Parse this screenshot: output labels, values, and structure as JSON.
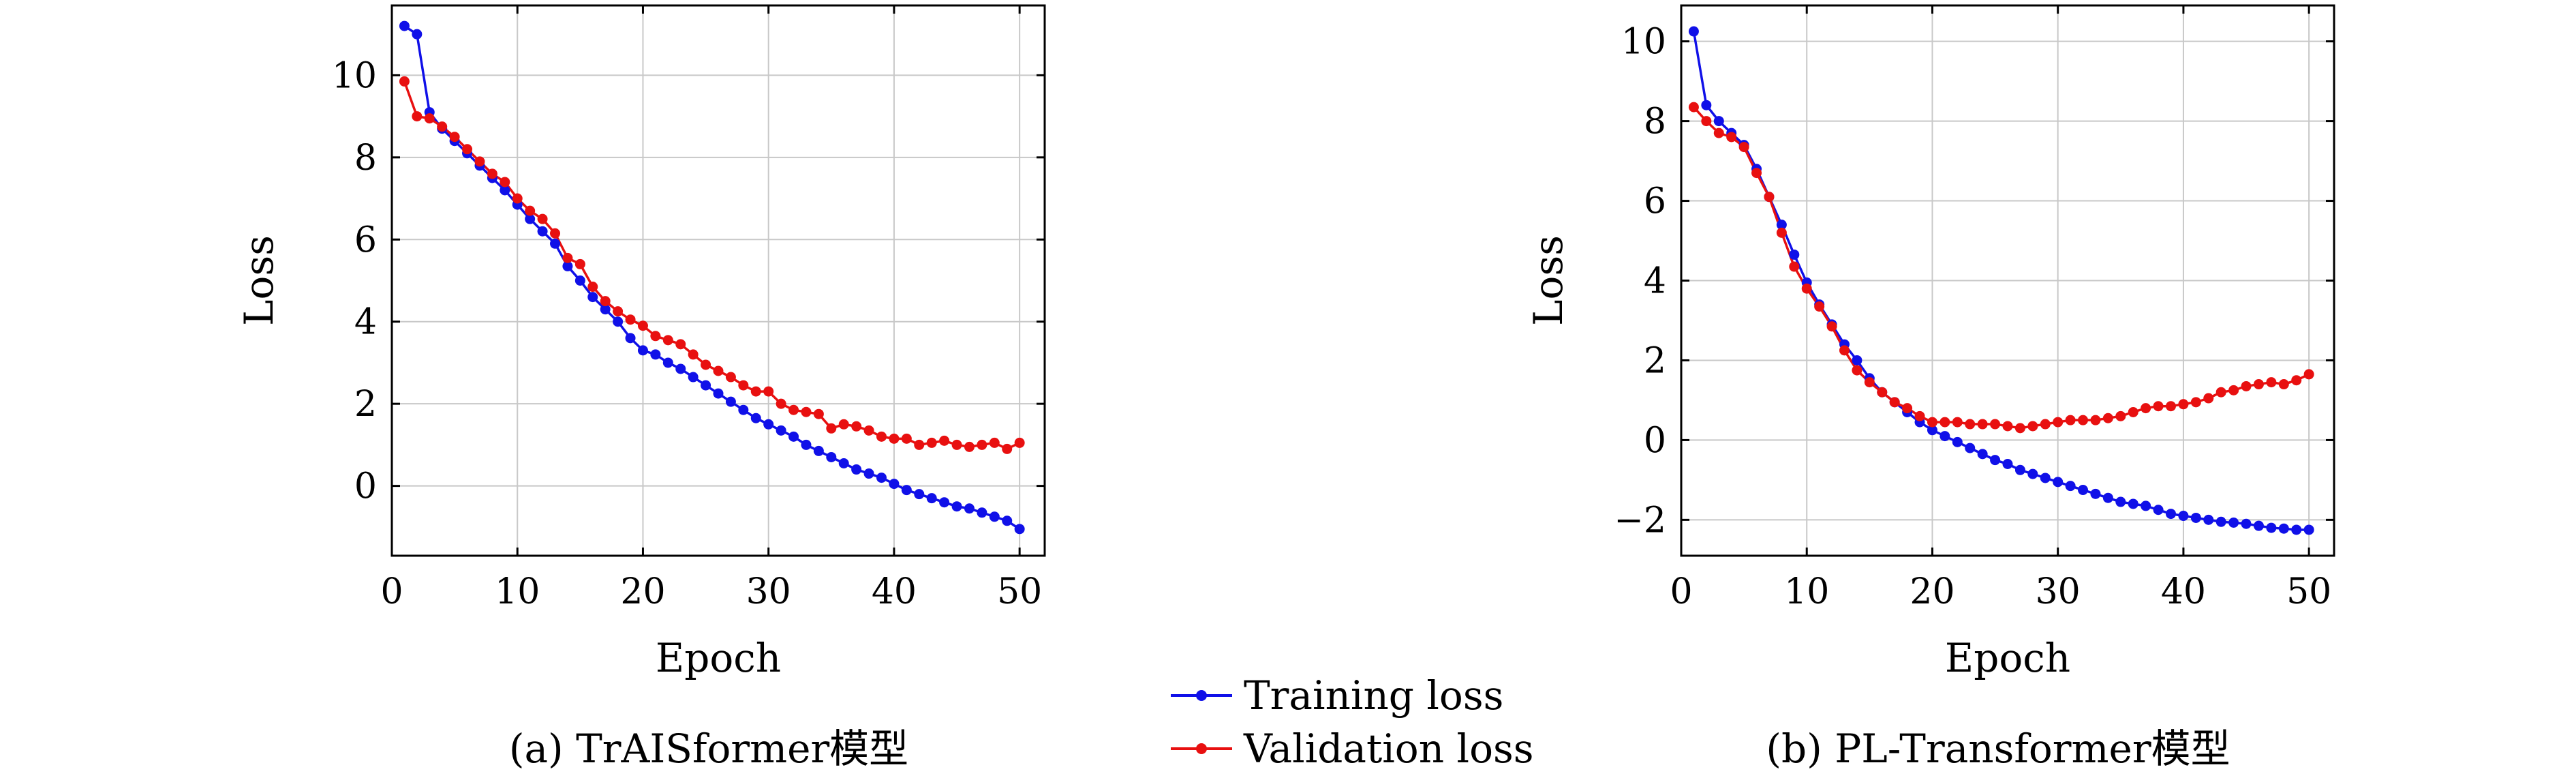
{
  "legend": {
    "training_label": "Training loss",
    "validation_label": "Validation loss"
  },
  "colors": {
    "training": "#1010e8",
    "validation": "#e81010",
    "grid": "#c8c8c8",
    "axis": "#000000"
  },
  "chart_data": [
    {
      "type": "line",
      "caption": "(a) TrAISformer模型",
      "xlabel": "Epoch",
      "ylabel": "Loss",
      "xlim": [
        0,
        52
      ],
      "ylim": [
        -1.7,
        11.7
      ],
      "xticks": [
        0,
        10,
        20,
        30,
        40,
        50
      ],
      "yticks": [
        0,
        2,
        4,
        6,
        8,
        10
      ],
      "grid": true,
      "x": [
        1,
        2,
        3,
        4,
        5,
        6,
        7,
        8,
        9,
        10,
        11,
        12,
        13,
        14,
        15,
        16,
        17,
        18,
        19,
        20,
        21,
        22,
        23,
        24,
        25,
        26,
        27,
        28,
        29,
        30,
        31,
        32,
        33,
        34,
        35,
        36,
        37,
        38,
        39,
        40,
        41,
        42,
        43,
        44,
        45,
        46,
        47,
        48,
        49,
        50
      ],
      "series": [
        {
          "name": "Training loss",
          "values": [
            11.2,
            11.0,
            9.1,
            8.7,
            8.4,
            8.1,
            7.8,
            7.5,
            7.2,
            6.85,
            6.5,
            6.2,
            5.9,
            5.35,
            5.0,
            4.6,
            4.3,
            4.0,
            3.6,
            3.3,
            3.2,
            3.0,
            2.85,
            2.65,
            2.45,
            2.25,
            2.05,
            1.85,
            1.65,
            1.5,
            1.35,
            1.2,
            1.0,
            0.85,
            0.7,
            0.55,
            0.4,
            0.3,
            0.2,
            0.05,
            -0.1,
            -0.2,
            -0.3,
            -0.4,
            -0.5,
            -0.55,
            -0.65,
            -0.75,
            -0.85,
            -1.05
          ]
        },
        {
          "name": "Validation loss",
          "values": [
            9.85,
            9.0,
            8.95,
            8.75,
            8.5,
            8.2,
            7.9,
            7.6,
            7.4,
            7.0,
            6.7,
            6.5,
            6.15,
            5.55,
            5.4,
            4.85,
            4.5,
            4.25,
            4.05,
            3.9,
            3.65,
            3.55,
            3.45,
            3.2,
            2.95,
            2.8,
            2.65,
            2.45,
            2.3,
            2.3,
            2.0,
            1.85,
            1.8,
            1.75,
            1.4,
            1.5,
            1.45,
            1.35,
            1.2,
            1.15,
            1.15,
            1.0,
            1.05,
            1.1,
            1.0,
            0.95,
            1.0,
            1.05,
            0.9,
            1.05
          ]
        }
      ]
    },
    {
      "type": "line",
      "caption": "(b) PL-Transformer模型",
      "xlabel": "Epoch",
      "ylabel": "Loss",
      "xlim": [
        0,
        52
      ],
      "ylim": [
        -2.9,
        10.9
      ],
      "xticks": [
        0,
        10,
        20,
        30,
        40,
        50
      ],
      "yticks": [
        -2,
        0,
        2,
        4,
        6,
        8,
        10
      ],
      "grid": true,
      "x": [
        1,
        2,
        3,
        4,
        5,
        6,
        7,
        8,
        9,
        10,
        11,
        12,
        13,
        14,
        15,
        16,
        17,
        18,
        19,
        20,
        21,
        22,
        23,
        24,
        25,
        26,
        27,
        28,
        29,
        30,
        31,
        32,
        33,
        34,
        35,
        36,
        37,
        38,
        39,
        40,
        41,
        42,
        43,
        44,
        45,
        46,
        47,
        48,
        49,
        50
      ],
      "series": [
        {
          "name": "Training loss",
          "values": [
            10.25,
            8.4,
            8.0,
            7.7,
            7.4,
            6.8,
            6.1,
            5.4,
            4.65,
            3.95,
            3.4,
            2.9,
            2.4,
            2.0,
            1.55,
            1.2,
            0.95,
            0.7,
            0.45,
            0.25,
            0.1,
            -0.05,
            -0.2,
            -0.35,
            -0.5,
            -0.6,
            -0.75,
            -0.85,
            -0.95,
            -1.05,
            -1.15,
            -1.25,
            -1.35,
            -1.45,
            -1.55,
            -1.6,
            -1.65,
            -1.75,
            -1.85,
            -1.9,
            -1.95,
            -2.0,
            -2.05,
            -2.07,
            -2.1,
            -2.15,
            -2.2,
            -2.22,
            -2.25,
            -2.25
          ]
        },
        {
          "name": "Validation loss",
          "values": [
            8.35,
            8.0,
            7.7,
            7.6,
            7.35,
            6.7,
            6.1,
            5.2,
            4.35,
            3.8,
            3.35,
            2.85,
            2.25,
            1.75,
            1.45,
            1.2,
            0.95,
            0.8,
            0.6,
            0.45,
            0.45,
            0.45,
            0.4,
            0.4,
            0.4,
            0.35,
            0.3,
            0.35,
            0.4,
            0.45,
            0.5,
            0.5,
            0.5,
            0.55,
            0.6,
            0.7,
            0.8,
            0.85,
            0.85,
            0.9,
            0.95,
            1.05,
            1.2,
            1.25,
            1.35,
            1.4,
            1.45,
            1.4,
            1.5,
            1.65
          ]
        }
      ]
    }
  ]
}
